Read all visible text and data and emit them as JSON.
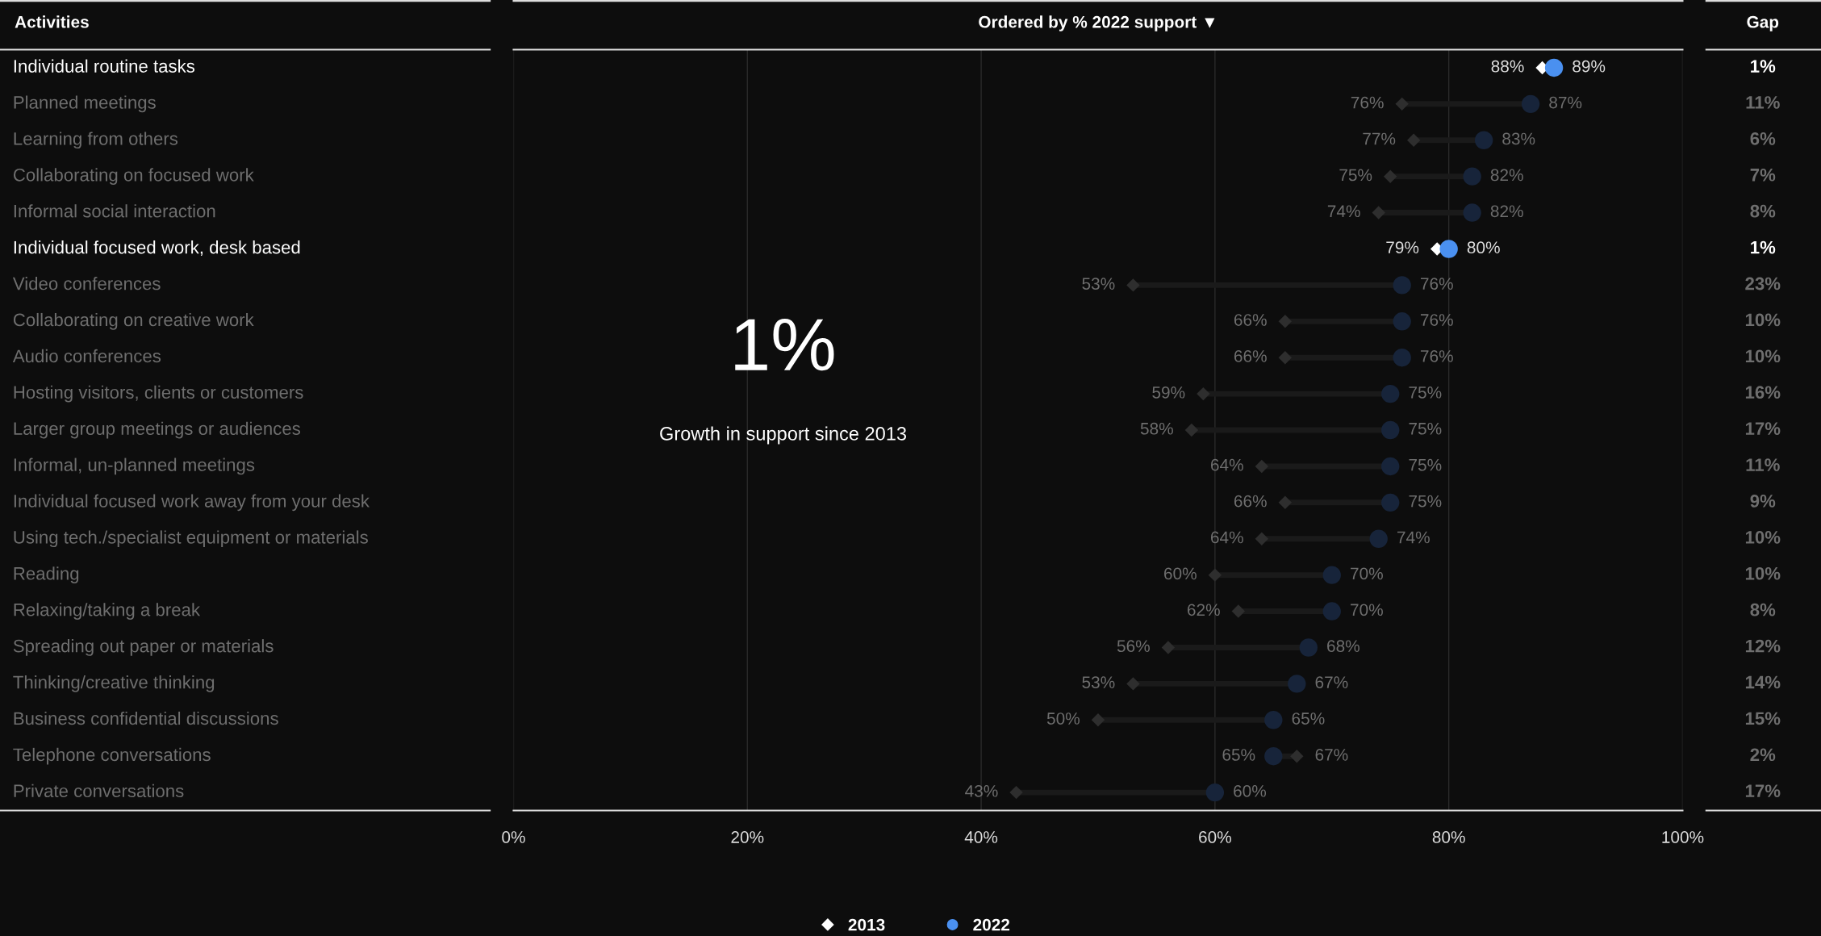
{
  "chart_data": {
    "type": "scatter",
    "orientation": "horizontal",
    "title": "Ordered by % 2022 support ▼",
    "ylabel": "Activities",
    "categories": [
      "Individual routine tasks",
      "Planned meetings",
      "Learning from others",
      "Collaborating on focused work",
      "Informal social interaction",
      "Individual focused work, desk based",
      "Video conferences",
      "Collaborating on creative work",
      "Audio conferences",
      "Hosting visitors, clients or customers",
      "Larger group meetings or audiences",
      "Informal, un-planned meetings",
      "Individual focused work away from your desk",
      "Using tech./specialist equipment or materials",
      "Reading",
      "Relaxing/taking a break",
      "Spreading out paper or materials",
      "Thinking/creative thinking",
      "Business confidential discussions",
      "Telephone conversations",
      "Private conversations"
    ],
    "series": [
      {
        "name": "2013",
        "color": "#ffffff",
        "marker": "diamond",
        "values": [
          88,
          76,
          77,
          75,
          74,
          79,
          53,
          66,
          66,
          59,
          58,
          64,
          66,
          64,
          60,
          62,
          56,
          53,
          50,
          67,
          43
        ],
        "colors": [
          "#ffffff",
          "#2e2e2e",
          "#2e2e2e",
          "#2e2e2e",
          "#2e2e2e",
          "#ffffff",
          "#2e2e2e",
          "#2e2e2e",
          "#2e2e2e",
          "#2e2e2e",
          "#2e2e2e",
          "#2e2e2e",
          "#2e2e2e",
          "#2e2e2e",
          "#2e2e2e",
          "#2e2e2e",
          "#2e2e2e",
          "#2e2e2e",
          "#2e2e2e",
          "#2e2e2e",
          "#2e2e2e"
        ],
        "value_labels": [
          "88%",
          "76%",
          "77%",
          "75%",
          "74%",
          "79%",
          "53%",
          "66%",
          "66%",
          "59%",
          "58%",
          "64%",
          "66%",
          "64%",
          "60%",
          "62%",
          "56%",
          "53%",
          "50%",
          "67%",
          "43%"
        ]
      },
      {
        "name": "2022",
        "color": "#4a90f0",
        "marker": "circle",
        "values": [
          89,
          87,
          83,
          82,
          82,
          80,
          76,
          76,
          76,
          75,
          75,
          75,
          75,
          74,
          70,
          70,
          68,
          67,
          65,
          65,
          60
        ],
        "colors": [
          "#4a90f0",
          "#17243a",
          "#17243a",
          "#17243a",
          "#17243a",
          "#4a90f0",
          "#17243a",
          "#17243a",
          "#17243a",
          "#17243a",
          "#17243a",
          "#17243a",
          "#17243a",
          "#17243a",
          "#17243a",
          "#17243a",
          "#17243a",
          "#17243a",
          "#17243a",
          "#17243a",
          "#17243a"
        ],
        "value_labels": [
          "89%",
          "87%",
          "83%",
          "82%",
          "82%",
          "80%",
          "76%",
          "76%",
          "76%",
          "75%",
          "75%",
          "75%",
          "75%",
          "74%",
          "70%",
          "70%",
          "68%",
          "67%",
          "65%",
          "65%",
          "60%"
        ]
      }
    ],
    "xlim": [
      0,
      100
    ],
    "xticks": [
      {
        "value": 0,
        "label": "0%"
      },
      {
        "value": 20,
        "label": "20%"
      },
      {
        "value": 40,
        "label": "40%"
      },
      {
        "value": 60,
        "label": "60%"
      },
      {
        "value": 80,
        "label": "80%"
      },
      {
        "value": 100,
        "label": "100%"
      }
    ],
    "grid": "x",
    "legend": "bottom",
    "annotations": [
      "1%",
      "Growth in support since 2013",
      "Gap",
      "1%",
      "11%",
      "6%",
      "7%",
      "8%",
      "1%",
      "23%",
      "10%",
      "10%",
      "16%",
      "17%",
      "11%",
      "9%",
      "10%",
      "10%",
      "8%",
      "12%",
      "14%",
      "15%",
      "2%",
      "17%"
    ]
  }
}
